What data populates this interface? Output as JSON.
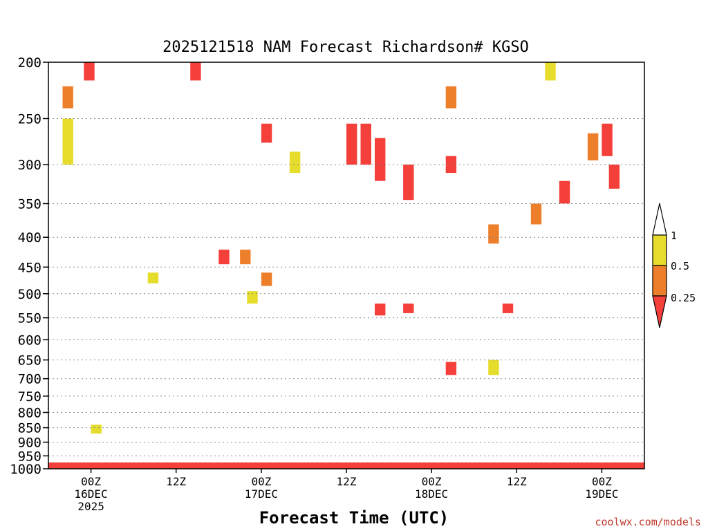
{
  "chart_data": {
    "type": "heatmap",
    "title": "2025121518 NAM Forecast Richardson# KGSO",
    "xlabel": "Forecast Time (UTC)",
    "ylabel": "",
    "y_axis": {
      "scale": "log-pressure",
      "range": [
        1000,
        200
      ],
      "ticks": [
        200,
        250,
        300,
        350,
        400,
        450,
        500,
        550,
        600,
        650,
        700,
        750,
        800,
        850,
        900,
        950,
        1000
      ],
      "grid": "dotted"
    },
    "x_axis": {
      "range_hours": [
        -6,
        78
      ],
      "ticks": [
        {
          "hour": 0,
          "label": "00Z",
          "sub1": "16DEC",
          "sub2": "2025"
        },
        {
          "hour": 12,
          "label": "12Z",
          "sub1": "",
          "sub2": ""
        },
        {
          "hour": 24,
          "label": "00Z",
          "sub1": "17DEC",
          "sub2": ""
        },
        {
          "hour": 36,
          "label": "12Z",
          "sub1": "",
          "sub2": ""
        },
        {
          "hour": 48,
          "label": "00Z",
          "sub1": "18DEC",
          "sub2": ""
        },
        {
          "hour": 60,
          "label": "12Z",
          "sub1": "",
          "sub2": ""
        },
        {
          "hour": 72,
          "label": "00Z",
          "sub1": "19DEC",
          "sub2": ""
        }
      ]
    },
    "colorbar": {
      "labels": [
        "1",
        "0.5",
        "0.25"
      ],
      "bins": [
        {
          "range": "0.5–1",
          "color": "#e5dc2c"
        },
        {
          "range": "0.25–0.5",
          "color": "#ee7f2a"
        },
        {
          "range": "<0.25",
          "color": "#f43f3a"
        }
      ]
    },
    "surface_color": "#9b5129",
    "series": [
      {
        "name": "<0.25",
        "color": "#f43f3a",
        "cells": [
          {
            "hour": -1,
            "p": [
              200,
              215
            ]
          },
          {
            "hour": 14,
            "p": [
              200,
              215
            ]
          },
          {
            "hour": 24,
            "p": [
              255,
              275
            ]
          },
          {
            "hour": 36,
            "p": [
              255,
              300
            ]
          },
          {
            "hour": 38,
            "p": [
              255,
              300
            ]
          },
          {
            "hour": 40,
            "p": [
              270,
              320
            ]
          },
          {
            "hour": 44,
            "p": [
              300,
              345
            ]
          },
          {
            "hour": 50,
            "p": [
              290,
              310
            ]
          },
          {
            "hour": 66,
            "p": [
              320,
              350
            ]
          },
          {
            "hour": 72,
            "p": [
              255,
              290
            ]
          },
          {
            "hour": 73,
            "p": [
              300,
              330
            ]
          },
          {
            "hour": 18,
            "p": [
              420,
              445
            ]
          },
          {
            "hour": 40,
            "p": [
              520,
              545
            ]
          },
          {
            "hour": 44,
            "p": [
              520,
              540
            ]
          },
          {
            "hour": 58,
            "p": [
              520,
              540
            ]
          },
          {
            "hour": 50,
            "p": [
              655,
              690
            ]
          }
        ]
      },
      {
        "name": "0.25–0.5",
        "color": "#ee7f2a",
        "cells": [
          {
            "hour": -4,
            "p": [
              220,
              240
            ]
          },
          {
            "hour": 50,
            "p": [
              220,
              240
            ]
          },
          {
            "hour": 21,
            "p": [
              420,
              445
            ]
          },
          {
            "hour": 24,
            "p": [
              460,
              485
            ]
          },
          {
            "hour": 70,
            "p": [
              265,
              295
            ]
          },
          {
            "hour": 62,
            "p": [
              350,
              380
            ]
          },
          {
            "hour": 56,
            "p": [
              380,
              410
            ]
          }
        ]
      },
      {
        "name": "0.5–1",
        "color": "#e5dc2c",
        "cells": [
          {
            "hour": -4,
            "p": [
              250,
              300
            ]
          },
          {
            "hour": 28,
            "p": [
              285,
              310
            ]
          },
          {
            "hour": 64,
            "p": [
              200,
              215
            ]
          },
          {
            "hour": 8,
            "p": [
              460,
              480
            ]
          },
          {
            "hour": 22,
            "p": [
              495,
              520
            ]
          },
          {
            "hour": 56,
            "p": [
              650,
              690
            ]
          },
          {
            "hour": 0,
            "p": [
              840,
              870
            ]
          }
        ]
      }
    ]
  },
  "credit": "coolwx.com/models"
}
